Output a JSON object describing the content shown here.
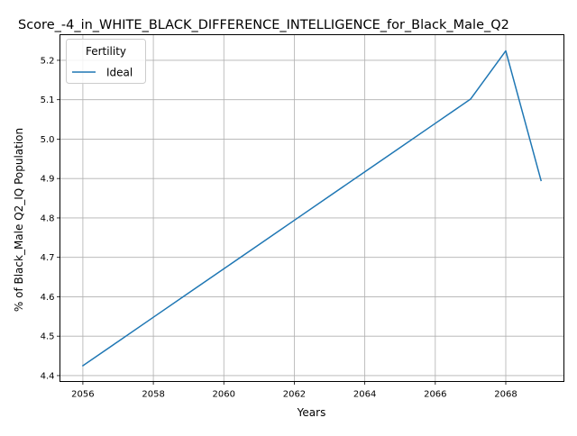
{
  "chart_data": {
    "type": "line",
    "title": "Score_-4_in_WHITE_BLACK_DIFFERENCE_INTELLIGENCE_for_Black_Male_Q2",
    "xlabel": "Years",
    "ylabel": "% of Black_Male Q2_IQ Population",
    "x": [
      2056,
      2057,
      2058,
      2059,
      2060,
      2061,
      2062,
      2063,
      2064,
      2065,
      2066,
      2067,
      2068,
      2069
    ],
    "series": [
      {
        "name": "Ideal",
        "color": "#1f77b4",
        "values": [
          4.425,
          4.4865,
          4.548,
          4.6095,
          4.671,
          4.7325,
          4.794,
          4.8555,
          4.917,
          4.9785,
          5.04,
          5.1015,
          5.224,
          4.895
        ]
      }
    ],
    "xlim": [
      2055.35,
      2069.65
    ],
    "ylim": [
      4.385,
      5.265
    ],
    "xticks": [
      "2056",
      "2058",
      "2060",
      "2062",
      "2064",
      "2066",
      "2068"
    ],
    "yticks": [
      "4.4",
      "4.5",
      "4.6",
      "4.7",
      "4.8",
      "4.9",
      "5.0",
      "5.1",
      "5.2"
    ],
    "grid": true,
    "legend": {
      "title": "Fertility",
      "placement": "upper-left"
    }
  }
}
